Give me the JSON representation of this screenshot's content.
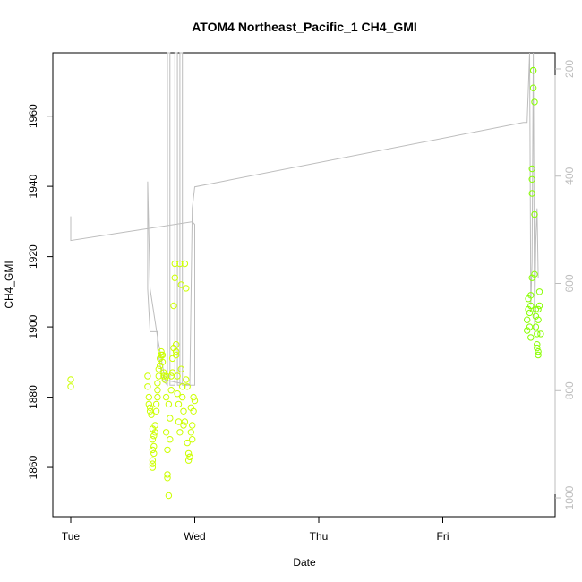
{
  "chart_data": {
    "type": "scatter",
    "title": "ATOM4 Northeast_Pacific_1 CH4_GMI",
    "xlabel": "Date",
    "ylabel": "CH4_GMI",
    "x_ticks": [
      "Tue",
      "Wed",
      "Thu",
      "Fri"
    ],
    "x_tick_days": [
      0,
      1,
      2,
      3
    ],
    "xlim_days": [
      -0.2,
      3.9
    ],
    "ylim": [
      1846,
      1978
    ],
    "y_ticks": [
      1860,
      1880,
      1900,
      1920,
      1940,
      1960
    ],
    "right_axis": {
      "ticks": [
        200,
        400,
        600,
        800,
        1000
      ],
      "lim": [
        1035,
        170
      ],
      "color": "#bdbdbd"
    },
    "series": [
      {
        "color": "#ccff00",
        "points": [
          [
            0.0,
            1885
          ],
          [
            0.0,
            1883
          ],
          [
            0.62,
            1886
          ],
          [
            0.62,
            1883
          ],
          [
            0.63,
            1880
          ],
          [
            0.63,
            1878
          ],
          [
            0.64,
            1877
          ],
          [
            0.64,
            1876
          ],
          [
            0.65,
            1875
          ],
          [
            0.66,
            1871
          ],
          [
            0.66,
            1868
          ],
          [
            0.66,
            1865
          ],
          [
            0.66,
            1862
          ],
          [
            0.66,
            1861
          ],
          [
            0.66,
            1860
          ],
          [
            0.67,
            1864
          ],
          [
            0.67,
            1866
          ],
          [
            0.67,
            1869
          ],
          [
            0.68,
            1870
          ],
          [
            0.68,
            1872
          ],
          [
            0.69,
            1876
          ],
          [
            0.69,
            1878
          ],
          [
            0.7,
            1880
          ],
          [
            0.7,
            1882
          ],
          [
            0.7,
            1884
          ],
          [
            0.71,
            1886
          ],
          [
            0.71,
            1888
          ],
          [
            0.72,
            1889
          ],
          [
            0.72,
            1891
          ],
          [
            0.73,
            1892
          ],
          [
            0.73,
            1893
          ],
          [
            0.74,
            1892
          ],
          [
            0.74,
            1890
          ],
          [
            0.75,
            1887
          ],
          [
            0.75,
            1886
          ],
          [
            0.76,
            1885
          ],
          [
            0.77,
            1886
          ],
          [
            0.77,
            1880
          ],
          [
            0.77,
            1870
          ],
          [
            0.78,
            1865
          ],
          [
            0.78,
            1858
          ],
          [
            0.78,
            1857
          ],
          [
            0.79,
            1852
          ],
          [
            0.79,
            1878
          ],
          [
            0.8,
            1868
          ],
          [
            0.8,
            1874
          ],
          [
            0.81,
            1882
          ],
          [
            0.81,
            1886
          ],
          [
            0.82,
            1887
          ],
          [
            0.82,
            1891
          ],
          [
            0.83,
            1894
          ],
          [
            0.83,
            1906
          ],
          [
            0.84,
            1914
          ],
          [
            0.84,
            1918
          ],
          [
            0.85,
            1893
          ],
          [
            0.85,
            1895
          ],
          [
            0.85,
            1892
          ],
          [
            0.86,
            1886
          ],
          [
            0.86,
            1881
          ],
          [
            0.87,
            1878
          ],
          [
            0.87,
            1873
          ],
          [
            0.88,
            1870
          ],
          [
            0.88,
            1918
          ],
          [
            0.89,
            1912
          ],
          [
            0.89,
            1888
          ],
          [
            0.9,
            1883
          ],
          [
            0.9,
            1880
          ],
          [
            0.91,
            1876
          ],
          [
            0.91,
            1872
          ],
          [
            0.92,
            1873
          ],
          [
            0.92,
            1918
          ],
          [
            0.93,
            1911
          ],
          [
            0.93,
            1885
          ],
          [
            0.94,
            1883
          ],
          [
            0.94,
            1867
          ],
          [
            0.95,
            1864
          ],
          [
            0.95,
            1862
          ],
          [
            0.96,
            1863
          ],
          [
            0.96,
            1863
          ],
          [
            0.97,
            1877
          ],
          [
            0.97,
            1870
          ],
          [
            0.98,
            1868
          ],
          [
            0.98,
            1872
          ],
          [
            0.99,
            1876
          ],
          [
            0.99,
            1880
          ],
          [
            1.0,
            1879
          ]
        ]
      },
      {
        "color": "#88ff00",
        "points": [
          [
            3.68,
            1899
          ],
          [
            3.68,
            1902
          ],
          [
            3.69,
            1905
          ],
          [
            3.69,
            1908
          ],
          [
            3.7,
            1904
          ],
          [
            3.7,
            1900
          ],
          [
            3.71,
            1906
          ],
          [
            3.71,
            1909
          ],
          [
            3.71,
            1897
          ],
          [
            3.72,
            1914
          ],
          [
            3.72,
            1938
          ],
          [
            3.72,
            1942
          ],
          [
            3.72,
            1945
          ],
          [
            3.73,
            1968
          ],
          [
            3.73,
            1973
          ],
          [
            3.73,
            1973
          ],
          [
            3.74,
            1964
          ],
          [
            3.74,
            1932
          ],
          [
            3.74,
            1915
          ],
          [
            3.75,
            1905
          ],
          [
            3.75,
            1903
          ],
          [
            3.75,
            1900
          ],
          [
            3.76,
            1898
          ],
          [
            3.76,
            1895
          ],
          [
            3.76,
            1894
          ],
          [
            3.77,
            1893
          ],
          [
            3.77,
            1892
          ],
          [
            3.77,
            1902
          ],
          [
            3.77,
            1905
          ],
          [
            3.78,
            1910
          ],
          [
            3.78,
            1906
          ],
          [
            3.79,
            1898
          ]
        ]
      }
    ],
    "pressure_line": {
      "color": "#bdbdbd",
      "points": [
        [
          0.0,
          475
        ],
        [
          0.0,
          520
        ],
        [
          0.98,
          485
        ],
        [
          1.0,
          490
        ],
        [
          1.0,
          790
        ],
        [
          0.98,
          790
        ],
        [
          0.9,
          790
        ],
        [
          0.9,
          170
        ],
        [
          0.88,
          170
        ],
        [
          0.88,
          790
        ],
        [
          0.86,
          790
        ],
        [
          0.86,
          170
        ],
        [
          0.84,
          170
        ],
        [
          0.84,
          790
        ],
        [
          0.8,
          790
        ],
        [
          0.8,
          170
        ],
        [
          0.78,
          170
        ],
        [
          0.78,
          790
        ],
        [
          0.74,
          780
        ],
        [
          0.7,
          720
        ],
        [
          0.7,
          690
        ],
        [
          0.64,
          690
        ],
        [
          0.62,
          610
        ],
        [
          0.62,
          410
        ],
        [
          0.64,
          610
        ],
        [
          0.7,
          700
        ],
        [
          0.76,
          780
        ],
        [
          0.96,
          790
        ],
        [
          0.98,
          460
        ],
        [
          1.0,
          420
        ],
        [
          3.65,
          300
        ],
        [
          3.68,
          300
        ],
        [
          3.7,
          170
        ],
        [
          3.71,
          640
        ],
        [
          3.72,
          560
        ],
        [
          3.73,
          170
        ],
        [
          3.74,
          690
        ],
        [
          3.75,
          520
        ],
        [
          3.76,
          460
        ],
        [
          3.77,
          590
        ]
      ]
    },
    "grid": false,
    "legend": "none"
  }
}
